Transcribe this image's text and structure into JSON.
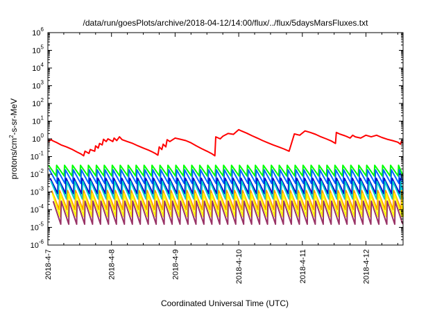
{
  "chart_data": {
    "type": "line",
    "title": "/data/run/goesPlots/archive/2018-04-12/14:00/flux/../flux/5daysMarsFluxes.txt",
    "xlabel": "Coordinated Universal Time (UTC)",
    "ylabel_parts": {
      "base": "protons/cm",
      "sup": "2",
      "rest": "-s-sr-MeV"
    },
    "yscale": "log",
    "ylim": [
      1e-06,
      1000000.0
    ],
    "xlim": [
      "2018-04-07T00:00",
      "2018-04-12T14:00"
    ],
    "grid": false,
    "legend": "none",
    "x_ticks": [
      "2018-4-7",
      "2018-4-8",
      "2018-4-9",
      "2018-4-10",
      "2018-4-11",
      "2018-4-12"
    ],
    "y_ticks": [
      {
        "base": "10",
        "exp": "-6"
      },
      {
        "base": "10",
        "exp": "-5"
      },
      {
        "base": "10",
        "exp": "-4"
      },
      {
        "base": "10",
        "exp": "-3"
      },
      {
        "base": "10",
        "exp": "-2"
      },
      {
        "base": "10",
        "exp": "-1"
      },
      {
        "base": "10",
        "exp": "0"
      },
      {
        "base": "10",
        "exp": "1"
      },
      {
        "base": "10",
        "exp": "2"
      },
      {
        "base": "10",
        "exp": "3"
      },
      {
        "base": "10",
        "exp": "4"
      },
      {
        "base": "10",
        "exp": "5"
      },
      {
        "base": "10",
        "exp": "6"
      }
    ],
    "series": [
      {
        "color": "#ff0000",
        "x": [
          "2018-04-07T00:00",
          "2018-04-07T01:20",
          "2018-04-07T01:40",
          "2018-04-07T03:30",
          "2018-04-07T05:00",
          "2018-04-07T07:00",
          "2018-04-07T09:00",
          "2018-04-07T11:00",
          "2018-04-07T12:30",
          "2018-04-07T13:30",
          "2018-04-07T14:00",
          "2018-04-07T15:30",
          "2018-04-07T16:00",
          "2018-04-07T17:40",
          "2018-04-07T18:00",
          "2018-04-07T19:00",
          "2018-04-07T19:30",
          "2018-04-07T20:30",
          "2018-04-07T21:00",
          "2018-04-07T22:00",
          "2018-04-07T22:40",
          "2018-04-08T00:30",
          "2018-04-08T01:00",
          "2018-04-08T02:00",
          "2018-04-08T03:00",
          "2018-04-08T04:00",
          "2018-04-08T06:00",
          "2018-04-08T08:00",
          "2018-04-08T10:00",
          "2018-04-08T12:00",
          "2018-04-08T14:00",
          "2018-04-08T15:30",
          "2018-04-08T16:30",
          "2018-04-08T17:30",
          "2018-04-08T18:00",
          "2018-04-08T19:00",
          "2018-04-08T19:30",
          "2018-04-08T20:30",
          "2018-04-08T21:00",
          "2018-04-08T22:00",
          "2018-04-09T00:00",
          "2018-04-09T02:00",
          "2018-04-09T04:00",
          "2018-04-09T06:00",
          "2018-04-09T08:00",
          "2018-04-09T10:00",
          "2018-04-09T12:00",
          "2018-04-09T14:00",
          "2018-04-09T15:00",
          "2018-04-09T15:20",
          "2018-04-09T17:00",
          "2018-04-09T18:00",
          "2018-04-09T20:00",
          "2018-04-09T22:00",
          "2018-04-10T00:00",
          "2018-04-10T01:00",
          "2018-04-10T03:00",
          "2018-04-10T05:00",
          "2018-04-10T07:00",
          "2018-04-10T09:00",
          "2018-04-10T11:00",
          "2018-04-10T13:00",
          "2018-04-10T15:00",
          "2018-04-10T17:00",
          "2018-04-10T19:00",
          "2018-04-10T21:00",
          "2018-04-10T23:00",
          "2018-04-11T01:00",
          "2018-04-11T03:00",
          "2018-04-11T05:00",
          "2018-04-11T07:00",
          "2018-04-11T09:00",
          "2018-04-11T11:00",
          "2018-04-11T12:30",
          "2018-04-11T12:50",
          "2018-04-11T14:00",
          "2018-04-11T16:00",
          "2018-04-11T17:00",
          "2018-04-11T18:00",
          "2018-04-11T19:00",
          "2018-04-11T20:00",
          "2018-04-11T22:00",
          "2018-04-12T00:00",
          "2018-04-12T02:00",
          "2018-04-12T04:00",
          "2018-04-12T06:00",
          "2018-04-12T08:00",
          "2018-04-12T10:00",
          "2018-04-12T12:00",
          "2018-04-12T13:00",
          "2018-04-12T13:20",
          "2018-04-12T14:00"
        ],
        "y": [
          0.7,
          0.9,
          0.8,
          0.6,
          0.45,
          0.35,
          0.26,
          0.18,
          0.14,
          0.11,
          0.2,
          0.15,
          0.25,
          0.2,
          0.4,
          0.3,
          0.55,
          0.45,
          0.95,
          0.7,
          1.0,
          0.7,
          1.1,
          0.8,
          1.3,
          0.9,
          0.7,
          0.55,
          0.4,
          0.3,
          0.23,
          0.18,
          0.15,
          0.12,
          0.35,
          0.25,
          0.5,
          0.35,
          0.9,
          0.7,
          1.1,
          0.95,
          0.8,
          0.6,
          0.4,
          0.28,
          0.2,
          0.14,
          0.11,
          1.3,
          1.0,
          1.4,
          2.0,
          1.8,
          3.3,
          2.8,
          2.1,
          1.5,
          1.1,
          0.8,
          0.6,
          0.45,
          0.35,
          0.27,
          0.2,
          1.9,
          1.6,
          2.8,
          2.3,
          1.8,
          1.3,
          1.0,
          0.75,
          0.55,
          2.3,
          1.9,
          1.5,
          1.3,
          1.1,
          1.6,
          1.3,
          1.1,
          1.6,
          1.3,
          1.6,
          1.2,
          0.95,
          0.8,
          0.65,
          0.5,
          0.7,
          0.6
        ]
      },
      {
        "color": "#00ff00",
        "base": 0.032,
        "min": 0.008,
        "sawtooth": true
      },
      {
        "color": "#0066ff",
        "base": 0.018,
        "min": 0.003,
        "sawtooth": true
      },
      {
        "color": "#0000cc",
        "base": 0.006,
        "min": 0.0008,
        "sawtooth": true
      },
      {
        "color": "#00cccc",
        "base": 0.004,
        "min": 0.0004,
        "sawtooth": true
      },
      {
        "color": "#ff9900",
        "base": 0.0012,
        "min": 0.0001,
        "sawtooth": true
      },
      {
        "color": "#ffff00",
        "base": 0.0008,
        "min": 4e-05,
        "sawtooth": true
      },
      {
        "color": "#993366",
        "base": 0.0003,
        "min": 1.5e-05,
        "sawtooth": true
      }
    ]
  }
}
